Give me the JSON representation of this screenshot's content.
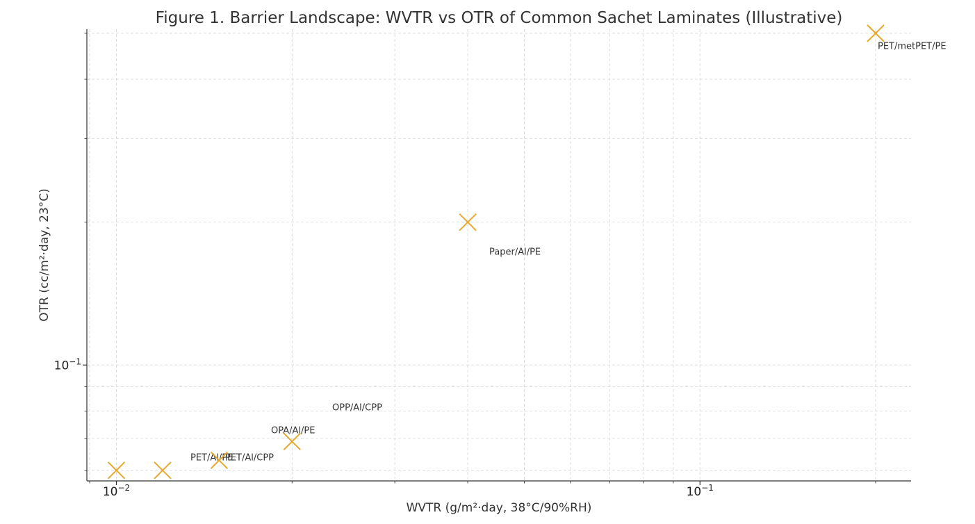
{
  "chart_data": {
    "type": "scatter",
    "title": "Figure 1. Barrier Landscape: WVTR vs OTR of Common Sachet Laminates (Illustrative)",
    "xlabel": "WVTR (g/m²·day, 38°C/90%RH)",
    "ylabel": "OTR (cc/m²·day, 23°C)",
    "xscale": "log",
    "yscale": "log",
    "xlim": [
      0.0089,
      0.23
    ],
    "ylim": [
      0.057,
      0.51
    ],
    "grid": true,
    "x_ticks": [
      {
        "value": 0.01,
        "base": "10",
        "exp": "−2"
      },
      {
        "value": 0.1,
        "base": "10",
        "exp": "−1"
      }
    ],
    "y_ticks": [
      {
        "value": 0.1,
        "base": "10",
        "exp": "−1"
      }
    ],
    "marker": "x",
    "marker_color": "#e6a92f",
    "points": [
      {
        "label": "PET/Al/PE",
        "x": 0.01,
        "y": 0.06
      },
      {
        "label": "PET/Al/CPP",
        "x": 0.012,
        "y": 0.06
      },
      {
        "label": "OPA/Al/PE",
        "x": 0.015,
        "y": 0.063
      },
      {
        "label": "OPP/Al/CPP",
        "x": 0.02,
        "y": 0.069
      },
      {
        "label": "Paper/Al/PE",
        "x": 0.04,
        "y": 0.2
      },
      {
        "label": "PET/metPET/PE",
        "x": 0.2,
        "y": 0.5
      }
    ]
  }
}
